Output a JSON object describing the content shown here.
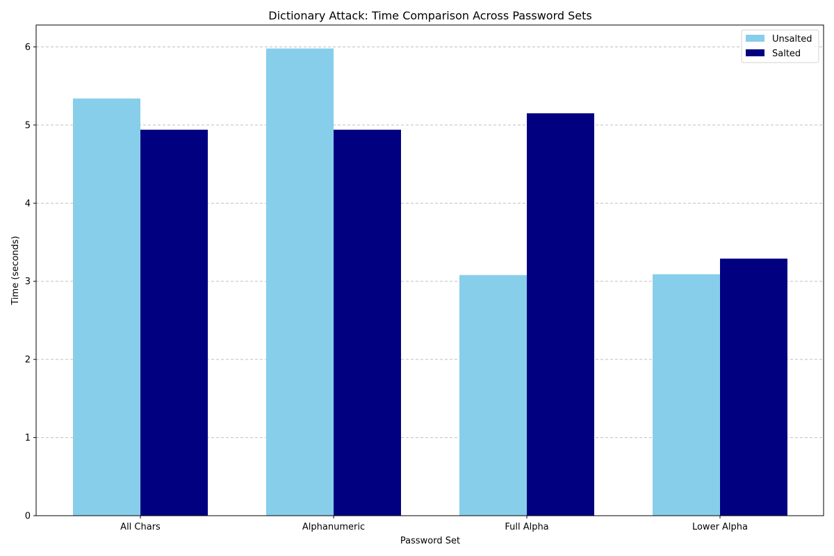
{
  "chart_data": {
    "type": "bar",
    "title": "Dictionary Attack: Time Comparison Across Password Sets",
    "xlabel": "Password Set",
    "ylabel": "Time (seconds)",
    "categories": [
      "All Chars",
      "Alphanumeric",
      "Full Alpha",
      "Lower Alpha"
    ],
    "series": [
      {
        "name": "Unsalted",
        "color": "#87CEEB",
        "values": [
          5.34,
          5.98,
          3.08,
          3.09
        ]
      },
      {
        "name": "Salted",
        "color": "#000080",
        "values": [
          4.94,
          4.94,
          5.15,
          3.29
        ]
      }
    ],
    "ylim": [
      0,
      6.28
    ],
    "yticks": [
      0,
      1,
      2,
      3,
      4,
      5,
      6
    ],
    "grid": {
      "y": true,
      "x": false,
      "style": "dashed"
    },
    "legend": {
      "placement": "top-right"
    }
  }
}
